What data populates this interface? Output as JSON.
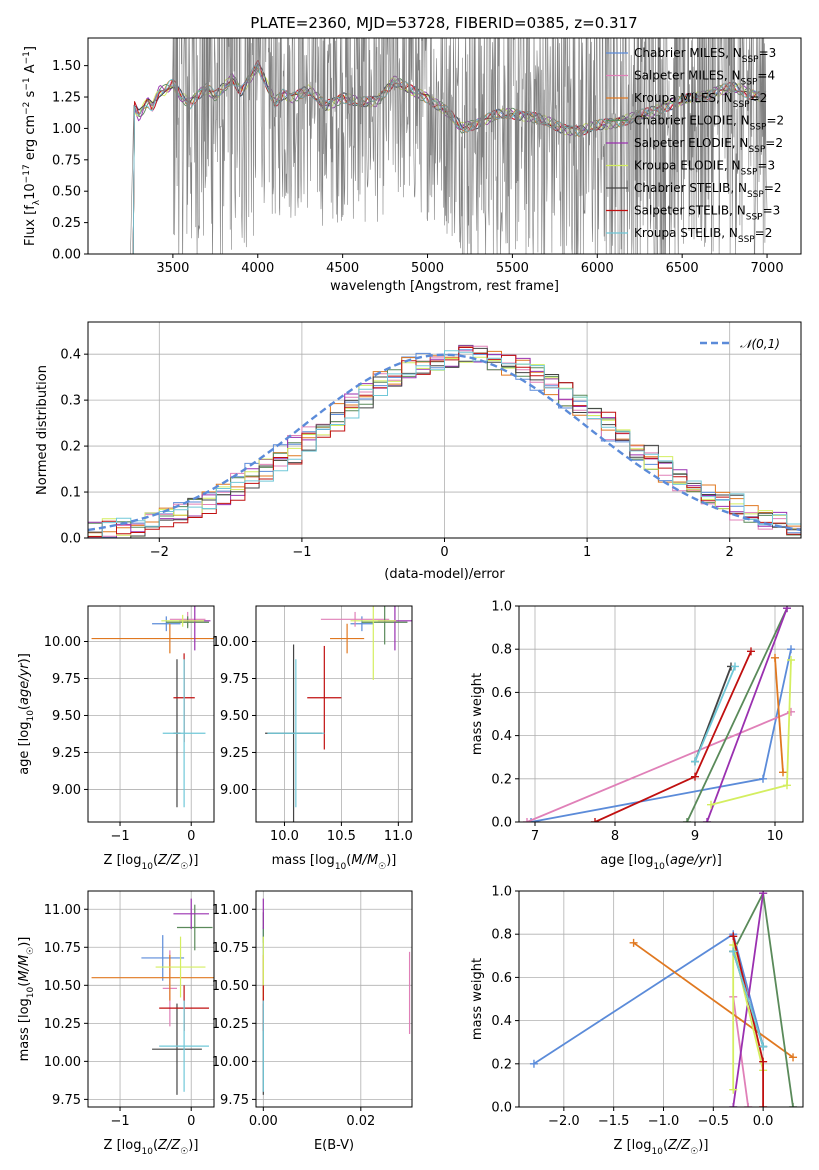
{
  "figure": {
    "title": "PLATE=2360, MJD=53728, FIBERID=0385, z=0.317"
  },
  "colors": {
    "Chabrier MILES": "#5b8bd9",
    "Salpeter MILES": "#e080b8",
    "Kroupa MILES": "#e07820",
    "Chabrier ELODIE": "#5a8a5a",
    "Salpeter ELODIE": "#9a30b0",
    "Kroupa ELODIE": "#d4ee60",
    "Chabrier STELIB": "#444444",
    "Salpeter STELIB": "#c01010",
    "Kroupa STELIB": "#70c8d8",
    "data": "#808080",
    "normal": "#5b8bd9"
  },
  "chart_data": [
    {
      "id": "spectrum",
      "type": "line",
      "title": "PLATE=2360, MJD=53728, FIBERID=0385, z=0.317",
      "xlabel": "wavelength [Angstrom, rest frame]",
      "ylabel": "Flux [f_λ10^-17 erg cm^-2 s^-1 A^-1]",
      "xlim": [
        3000,
        7200
      ],
      "ylim": [
        0,
        1.72
      ],
      "xticks": [
        3500,
        4000,
        4500,
        5000,
        5500,
        6000,
        6500,
        7000
      ],
      "yticks": [
        0.0,
        0.25,
        0.5,
        0.75,
        1.0,
        1.25,
        1.5
      ],
      "data_trace": {
        "name": "data",
        "x_range": [
          3250,
          7000
        ],
        "anchors": [
          [
            3250,
            0.0
          ],
          [
            3270,
            1.18
          ],
          [
            3300,
            1.1
          ],
          [
            3350,
            1.22
          ],
          [
            3380,
            1.18
          ],
          [
            3420,
            1.3
          ],
          [
            3450,
            1.3
          ],
          [
            3500,
            1.35
          ],
          [
            3550,
            1.25
          ],
          [
            3600,
            1.2
          ],
          [
            3650,
            1.28
          ],
          [
            3700,
            1.32
          ],
          [
            3750,
            1.25
          ],
          [
            3800,
            1.32
          ],
          [
            3850,
            1.4
          ],
          [
            3900,
            1.3
          ],
          [
            3950,
            1.4
          ],
          [
            4000,
            1.5
          ],
          [
            4050,
            1.35
          ],
          [
            4100,
            1.2
          ],
          [
            4150,
            1.28
          ],
          [
            4200,
            1.25
          ],
          [
            4300,
            1.3
          ],
          [
            4400,
            1.18
          ],
          [
            4500,
            1.25
          ],
          [
            4600,
            1.2
          ],
          [
            4700,
            1.22
          ],
          [
            4800,
            1.38
          ],
          [
            4900,
            1.3
          ],
          [
            5000,
            1.25
          ],
          [
            5100,
            1.15
          ],
          [
            5200,
            1.0
          ],
          [
            5300,
            1.05
          ],
          [
            5400,
            1.1
          ],
          [
            5500,
            1.12
          ],
          [
            5600,
            1.1
          ],
          [
            5700,
            1.05
          ],
          [
            5800,
            1.0
          ],
          [
            5900,
            0.98
          ],
          [
            6000,
            1.02
          ],
          [
            6100,
            1.05
          ],
          [
            6200,
            1.08
          ],
          [
            6300,
            1.12
          ],
          [
            6400,
            1.18
          ],
          [
            6500,
            1.22
          ],
          [
            6600,
            1.25
          ],
          [
            6700,
            1.3
          ],
          [
            6800,
            1.32
          ],
          [
            6900,
            1.28
          ],
          [
            7000,
            1.25
          ]
        ]
      },
      "legend": [
        {
          "name": "Chabrier MILES",
          "nssp": "3"
        },
        {
          "name": "Salpeter MILES",
          "nssp": "4"
        },
        {
          "name": "Kroupa MILES",
          "nssp": "2"
        },
        {
          "name": "Chabrier ELODIE",
          "nssp": "2"
        },
        {
          "name": "Salpeter ELODIE",
          "nssp": "2"
        },
        {
          "name": "Kroupa ELODIE",
          "nssp": "3"
        },
        {
          "name": "Chabrier STELIB",
          "nssp": "2"
        },
        {
          "name": "Salpeter STELIB",
          "nssp": "3"
        },
        {
          "name": "Kroupa STELIB",
          "nssp": "2"
        }
      ],
      "legend_suffix": "SSP",
      "legend_prefix": "N",
      "legend_placement": "upper right",
      "grid": false
    },
    {
      "id": "residuals",
      "type": "histogram",
      "xlabel": "(data-model)/error",
      "ylabel": "Normed distribution",
      "xlim": [
        -2.5,
        2.5
      ],
      "ylim": [
        0,
        0.47
      ],
      "xticks": [
        -2,
        -1,
        0,
        1,
        2
      ],
      "yticks": [
        0.0,
        0.1,
        0.2,
        0.3,
        0.4
      ],
      "bin_width": 0.1,
      "legend": [
        "𝒩(0,1)"
      ],
      "legend_placement": "upper right",
      "grid": true
    },
    {
      "id": "age_vs_Z",
      "type": "errorbar",
      "xlabel": "Z [log10(Z/Z☉)]",
      "ylabel": "age  [log10(age/yr)]",
      "xlim": [
        -1.45,
        0.32
      ],
      "ylim": [
        8.78,
        10.24
      ],
      "xticks": [
        -1,
        0
      ],
      "yticks": [
        9.0,
        9.25,
        9.5,
        9.75,
        10.0
      ],
      "grid": true,
      "points": [
        {
          "model": "Chabrier MILES",
          "x": -0.35,
          "y": 10.12,
          "xerr": 0.2,
          "yerr": 0.05
        },
        {
          "model": "Salpeter MILES",
          "x": -0.05,
          "y": 10.15,
          "xerr": 0.25,
          "yerr": 0.05
        },
        {
          "model": "Kroupa MILES",
          "x": -0.3,
          "y": 10.02,
          "xerr": 1.1,
          "yerr": 0.1
        },
        {
          "model": "Chabrier ELODIE",
          "x": -0.05,
          "y": 10.13,
          "xerr": 0.3,
          "yerr": 0.04
        },
        {
          "model": "Salpeter ELODIE",
          "x": 0.05,
          "y": 10.14,
          "xerr": 0.22,
          "yerr": 0.2
        },
        {
          "model": "Kroupa ELODIE",
          "x": -0.12,
          "y": 10.14,
          "xerr": 0.3,
          "yerr": 0.04
        },
        {
          "model": "Chabrier STELIB",
          "x": -0.2,
          "y": 9.38,
          "xerr": 0.05,
          "yerr": 0.5
        },
        {
          "model": "Salpeter STELIB",
          "x": -0.1,
          "y": 9.62,
          "xerr": 0.15,
          "yerr": 0.3
        },
        {
          "model": "Kroupa STELIB",
          "x": -0.1,
          "y": 9.38,
          "xerr": 0.3,
          "yerr": 0.5
        }
      ]
    },
    {
      "id": "age_vs_mass",
      "type": "errorbar",
      "xlabel": "mass [log10(M/M☉)]",
      "ylabel": "",
      "xlim": [
        9.75,
        11.12
      ],
      "ylim": [
        8.78,
        10.24
      ],
      "xticks": [
        10.0,
        10.5,
        11.0
      ],
      "yticks": [
        9.0,
        9.25,
        9.5,
        9.75,
        10.0
      ],
      "grid": true,
      "points": [
        {
          "model": "Chabrier MILES",
          "x": 10.68,
          "y": 10.12,
          "xerr": 0.1,
          "yerr": 0.05
        },
        {
          "model": "Salpeter MILES",
          "x": 10.62,
          "y": 10.15,
          "xerr": 0.3,
          "yerr": 0.05
        },
        {
          "model": "Kroupa MILES",
          "x": 10.55,
          "y": 10.02,
          "xerr": 0.15,
          "yerr": 0.1
        },
        {
          "model": "Chabrier ELODIE",
          "x": 10.88,
          "y": 10.13,
          "xerr": 0.2,
          "yerr": 0.15
        },
        {
          "model": "Salpeter ELODIE",
          "x": 10.97,
          "y": 10.14,
          "xerr": 0.15,
          "yerr": 0.2
        },
        {
          "model": "Kroupa ELODIE",
          "x": 10.78,
          "y": 10.14,
          "xerr": 0.2,
          "yerr": 0.4
        },
        {
          "model": "Chabrier STELIB",
          "x": 10.08,
          "y": 9.38,
          "xerr": 0.25,
          "yerr": 0.6
        },
        {
          "model": "Salpeter STELIB",
          "x": 10.35,
          "y": 9.62,
          "xerr": 0.15,
          "yerr": 0.35
        },
        {
          "model": "Kroupa STELIB",
          "x": 10.1,
          "y": 9.38,
          "xerr": 0.25,
          "yerr": 0.5
        }
      ]
    },
    {
      "id": "massweight_vs_age",
      "type": "line",
      "xlabel": "age  [log10(age/yr)]",
      "ylabel": "mass weight",
      "xlim": [
        6.8,
        10.35
      ],
      "ylim": [
        0,
        1.0
      ],
      "xticks": [
        7,
        8,
        9,
        10
      ],
      "yticks": [
        0.0,
        0.2,
        0.4,
        0.6,
        0.8,
        1.0
      ],
      "grid": true,
      "series": [
        {
          "name": "Chabrier MILES",
          "x": [
            6.95,
            9.85,
            10.2
          ],
          "y": [
            0.0,
            0.2,
            0.8
          ]
        },
        {
          "name": "Salpeter MILES",
          "x": [
            6.9,
            10.2
          ],
          "y": [
            0.0,
            0.51
          ]
        },
        {
          "name": "Kroupa MILES",
          "x": [
            10.0,
            10.1
          ],
          "y": [
            0.76,
            0.23
          ]
        },
        {
          "name": "Chabrier ELODIE",
          "x": [
            8.9,
            10.15
          ],
          "y": [
            0.0,
            0.99
          ]
        },
        {
          "name": "Salpeter ELODIE",
          "x": [
            9.15,
            10.15
          ],
          "y": [
            0.0,
            0.99
          ]
        },
        {
          "name": "Kroupa ELODIE",
          "x": [
            9.2,
            10.15,
            10.2
          ],
          "y": [
            0.08,
            0.17,
            0.75
          ]
        },
        {
          "name": "Chabrier STELIB",
          "x": [
            9.0,
            9.45
          ],
          "y": [
            0.28,
            0.72
          ]
        },
        {
          "name": "Salpeter STELIB",
          "x": [
            7.75,
            9.0,
            9.7
          ],
          "y": [
            0.0,
            0.21,
            0.79
          ]
        },
        {
          "name": "Kroupa STELIB",
          "x": [
            9.0,
            9.5
          ],
          "y": [
            0.28,
            0.72
          ]
        }
      ]
    },
    {
      "id": "mass_vs_Z",
      "type": "errorbar",
      "xlabel": "Z [log10(Z/Z☉)]",
      "ylabel": "mass [log10(M/M☉)]",
      "xlim": [
        -1.45,
        0.32
      ],
      "ylim": [
        9.7,
        11.12
      ],
      "xticks": [
        -1,
        0
      ],
      "yticks": [
        9.75,
        10.0,
        10.25,
        10.5,
        10.75,
        11.0
      ],
      "grid": true,
      "points": [
        {
          "model": "Chabrier MILES",
          "x": -0.4,
          "y": 10.68,
          "xerr": 0.3,
          "yerr": 0.15
        },
        {
          "model": "Salpeter MILES",
          "x": -0.3,
          "y": 10.48,
          "xerr": 0.1,
          "yerr": 0.25
        },
        {
          "model": "Kroupa MILES",
          "x": -0.3,
          "y": 10.55,
          "xerr": 1.1,
          "yerr": 0.15
        },
        {
          "model": "Chabrier ELODIE",
          "x": 0.05,
          "y": 10.88,
          "xerr": 0.25,
          "yerr": 0.15
        },
        {
          "model": "Salpeter ELODIE",
          "x": 0.0,
          "y": 10.97,
          "xerr": 0.25,
          "yerr": 0.1
        },
        {
          "model": "Kroupa ELODIE",
          "x": -0.15,
          "y": 10.62,
          "xerr": 0.35,
          "yerr": 0.2
        },
        {
          "model": "Chabrier STELIB",
          "x": -0.2,
          "y": 10.08,
          "xerr": 0.35,
          "yerr": 0.3
        },
        {
          "model": "Salpeter STELIB",
          "x": -0.1,
          "y": 10.35,
          "xerr": 0.35,
          "yerr": 0.15
        },
        {
          "model": "Kroupa STELIB",
          "x": -0.1,
          "y": 10.1,
          "xerr": 0.35,
          "yerr": 0.3
        }
      ]
    },
    {
      "id": "mass_vs_ebv",
      "type": "errorbar",
      "xlabel": "E(B-V)",
      "ylabel": "",
      "xlim": [
        -0.0015,
        0.0305
      ],
      "ylim": [
        9.7,
        11.12
      ],
      "xticks": [
        0.0,
        0.02
      ],
      "xtick_labels": [
        "0.00",
        "0.02"
      ],
      "yticks": [
        9.75,
        10.0,
        10.25,
        10.5,
        10.75,
        11.0
      ],
      "grid": true,
      "points": [
        {
          "model": "Chabrier MILES",
          "x": 0.0,
          "y": 10.68,
          "yerr": 0.2
        },
        {
          "model": "Salpeter MILES",
          "x": 0.03,
          "y": 10.45,
          "yerr": 0.27
        },
        {
          "model": "Kroupa MILES",
          "x": 0.0,
          "y": 10.55,
          "yerr": 0.15
        },
        {
          "model": "Chabrier ELODIE",
          "x": 0.0,
          "y": 10.88,
          "yerr": 0.1
        },
        {
          "model": "Salpeter ELODIE",
          "x": 0.0,
          "y": 10.97,
          "yerr": 0.1
        },
        {
          "model": "Kroupa ELODIE",
          "x": 0.0,
          "y": 10.62,
          "yerr": 0.2
        },
        {
          "model": "Chabrier STELIB",
          "x": 0.0,
          "y": 10.08,
          "yerr": 0.3
        },
        {
          "model": "Salpeter STELIB",
          "x": 0.0,
          "y": 10.35,
          "yerr": 0.15
        },
        {
          "model": "Kroupa STELIB",
          "x": 0.0,
          "y": 10.1,
          "yerr": 0.3
        }
      ]
    },
    {
      "id": "massweight_vs_Z",
      "type": "line",
      "xlabel": "Z [log10(Z/Z☉)]",
      "ylabel": "mass weight",
      "xlim": [
        -2.45,
        0.4
      ],
      "ylim": [
        0,
        1.0
      ],
      "xticks": [
        -2.0,
        -1.5,
        -1.0,
        -0.5,
        0.0
      ],
      "yticks": [
        0.0,
        0.2,
        0.4,
        0.6,
        0.8,
        1.0
      ],
      "grid": true,
      "series": [
        {
          "name": "Chabrier MILES",
          "x": [
            -2.3,
            -0.3,
            0.0
          ],
          "y": [
            0.2,
            0.8,
            0.28
          ]
        },
        {
          "name": "Salpeter MILES",
          "x": [
            -0.3,
            -0.15
          ],
          "y": [
            0.51,
            0.0
          ]
        },
        {
          "name": "Kroupa MILES",
          "x": [
            -1.3,
            0.3
          ],
          "y": [
            0.76,
            0.23
          ]
        },
        {
          "name": "Chabrier ELODIE",
          "x": [
            -0.3,
            0.0,
            0.3
          ],
          "y": [
            0.72,
            0.99,
            0.0
          ]
        },
        {
          "name": "Salpeter ELODIE",
          "x": [
            -0.3,
            0.0
          ],
          "y": [
            0.0,
            0.99
          ]
        },
        {
          "name": "Kroupa ELODIE",
          "x": [
            -0.3,
            -0.3,
            0.0
          ],
          "y": [
            0.08,
            0.75,
            0.17
          ]
        },
        {
          "name": "Chabrier STELIB",
          "x": [
            -0.3,
            0.0
          ],
          "y": [
            0.72,
            0.28
          ]
        },
        {
          "name": "Salpeter STELIB",
          "x": [
            -0.3,
            0.0,
            0.0
          ],
          "y": [
            0.79,
            0.21,
            0.0
          ]
        },
        {
          "name": "Kroupa STELIB",
          "x": [
            -0.3,
            0.0
          ],
          "y": [
            0.72,
            0.28
          ]
        }
      ]
    }
  ]
}
